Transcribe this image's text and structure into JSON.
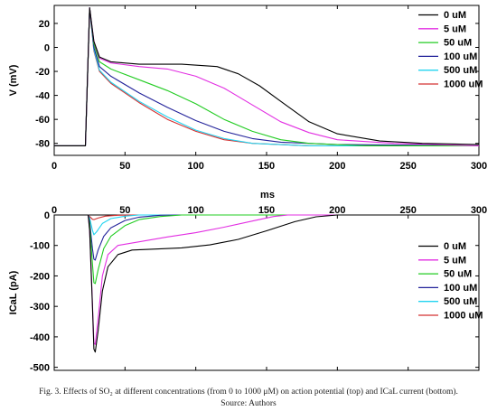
{
  "caption": {
    "line": "Fig. 3. Effects of SO₂ at different concentrations (from 0 to 1000 μM) on action potential (top) and ICaL current (bottom).",
    "source": "Source: Authors"
  },
  "shared_xlabel": "ms",
  "series_colors": [
    "#000000",
    "#e22ee2",
    "#22cc22",
    "#22229a",
    "#22d4f0",
    "#d43030"
  ],
  "chart_data": [
    {
      "type": "line",
      "title": "",
      "xlabel": "",
      "ylabel": "V (mV)",
      "xlim": [
        0,
        300
      ],
      "ylim": [
        -90,
        35
      ],
      "xticks": [
        0,
        50,
        100,
        150,
        200,
        250,
        300
      ],
      "yticks": [
        20,
        0,
        -20,
        -40,
        -60,
        -80
      ],
      "legend": {
        "position": "top-right",
        "entries": [
          "0 uM",
          "5 uM",
          "50 uM",
          "100 uM",
          "500 uM",
          "1000 uM"
        ]
      },
      "series": [
        {
          "name": "0 uM",
          "points": [
            [
              0,
              -82
            ],
            [
              22,
              -82
            ],
            [
              25,
              33
            ],
            [
              28,
              5
            ],
            [
              32,
              -8
            ],
            [
              40,
              -12
            ],
            [
              60,
              -14
            ],
            [
              90,
              -14
            ],
            [
              115,
              -16
            ],
            [
              130,
              -22
            ],
            [
              145,
              -32
            ],
            [
              160,
              -45
            ],
            [
              180,
              -62
            ],
            [
              200,
              -72
            ],
            [
              230,
              -78
            ],
            [
              260,
              -80
            ],
            [
              300,
              -81
            ]
          ]
        },
        {
          "name": "5 uM",
          "points": [
            [
              0,
              -82
            ],
            [
              22,
              -82
            ],
            [
              25,
              33
            ],
            [
              28,
              5
            ],
            [
              32,
              -9
            ],
            [
              40,
              -13
            ],
            [
              60,
              -16
            ],
            [
              80,
              -18
            ],
            [
              100,
              -24
            ],
            [
              120,
              -34
            ],
            [
              140,
              -48
            ],
            [
              160,
              -62
            ],
            [
              180,
              -71
            ],
            [
              200,
              -77
            ],
            [
              240,
              -80
            ],
            [
              300,
              -82
            ]
          ]
        },
        {
          "name": "50 uM",
          "points": [
            [
              0,
              -82
            ],
            [
              22,
              -82
            ],
            [
              25,
              33
            ],
            [
              28,
              3
            ],
            [
              32,
              -12
            ],
            [
              40,
              -18
            ],
            [
              60,
              -27
            ],
            [
              80,
              -36
            ],
            [
              100,
              -47
            ],
            [
              120,
              -60
            ],
            [
              140,
              -70
            ],
            [
              160,
              -77
            ],
            [
              180,
              -80
            ],
            [
              220,
              -82
            ],
            [
              300,
              -82
            ]
          ]
        },
        {
          "name": "100 uM",
          "points": [
            [
              0,
              -82
            ],
            [
              22,
              -82
            ],
            [
              25,
              33
            ],
            [
              28,
              0
            ],
            [
              32,
              -16
            ],
            [
              40,
              -24
            ],
            [
              60,
              -38
            ],
            [
              80,
              -50
            ],
            [
              100,
              -61
            ],
            [
              120,
              -70
            ],
            [
              140,
              -76
            ],
            [
              160,
              -79
            ],
            [
              200,
              -81
            ],
            [
              300,
              -82
            ]
          ]
        },
        {
          "name": "500 uM",
          "points": [
            [
              0,
              -82
            ],
            [
              22,
              -82
            ],
            [
              25,
              33
            ],
            [
              28,
              -2
            ],
            [
              32,
              -19
            ],
            [
              40,
              -29
            ],
            [
              60,
              -45
            ],
            [
              80,
              -58
            ],
            [
              100,
              -69
            ],
            [
              120,
              -76
            ],
            [
              140,
              -80
            ],
            [
              180,
              -82
            ],
            [
              300,
              -82
            ]
          ]
        },
        {
          "name": "1000 uM",
          "points": [
            [
              0,
              -82
            ],
            [
              22,
              -82
            ],
            [
              25,
              33
            ],
            [
              28,
              -3
            ],
            [
              32,
              -20
            ],
            [
              40,
              -30
            ],
            [
              60,
              -46
            ],
            [
              80,
              -60
            ],
            [
              100,
              -70
            ],
            [
              120,
              -77
            ],
            [
              140,
              -80
            ],
            [
              180,
              -82
            ],
            [
              300,
              -82
            ]
          ]
        }
      ]
    },
    {
      "type": "line",
      "title": "",
      "xlabel": "",
      "ylabel": "ICaL (pA)",
      "xlim": [
        0,
        300
      ],
      "ylim": [
        -510,
        0
      ],
      "xticks": [
        0,
        50,
        100,
        150,
        200,
        250,
        300
      ],
      "yticks": [
        0,
        -100,
        -200,
        -300,
        -400,
        -500
      ],
      "legend": {
        "position": "bottom-right",
        "entries": [
          "0 uM",
          "5 uM",
          "50 uM",
          "100 uM",
          "500 uM",
          "1000 uM"
        ]
      },
      "series": [
        {
          "name": "0 uM",
          "points": [
            [
              0,
              0
            ],
            [
              24,
              0
            ],
            [
              25,
              -50
            ],
            [
              27,
              -300
            ],
            [
              28,
              -440
            ],
            [
              29,
              -450
            ],
            [
              31,
              -380
            ],
            [
              34,
              -250
            ],
            [
              38,
              -170
            ],
            [
              45,
              -130
            ],
            [
              55,
              -115
            ],
            [
              70,
              -112
            ],
            [
              90,
              -108
            ],
            [
              110,
              -98
            ],
            [
              130,
              -80
            ],
            [
              150,
              -52
            ],
            [
              170,
              -22
            ],
            [
              185,
              -6
            ],
            [
              200,
              0
            ],
            [
              300,
              0
            ]
          ]
        },
        {
          "name": "5 uM",
          "points": [
            [
              0,
              0
            ],
            [
              24,
              0
            ],
            [
              25,
              -50
            ],
            [
              27,
              -290
            ],
            [
              28,
              -420
            ],
            [
              29,
              -425
            ],
            [
              31,
              -340
            ],
            [
              34,
              -200
            ],
            [
              38,
              -130
            ],
            [
              45,
              -100
            ],
            [
              60,
              -88
            ],
            [
              80,
              -72
            ],
            [
              100,
              -58
            ],
            [
              120,
              -40
            ],
            [
              140,
              -20
            ],
            [
              155,
              -5
            ],
            [
              165,
              0
            ],
            [
              300,
              0
            ]
          ]
        },
        {
          "name": "50 uM",
          "points": [
            [
              0,
              0
            ],
            [
              24,
              0
            ],
            [
              25,
              -30
            ],
            [
              27,
              -160
            ],
            [
              28,
              -222
            ],
            [
              29,
              -225
            ],
            [
              31,
              -180
            ],
            [
              35,
              -110
            ],
            [
              40,
              -70
            ],
            [
              50,
              -35
            ],
            [
              60,
              -15
            ],
            [
              75,
              -5
            ],
            [
              90,
              0
            ],
            [
              300,
              0
            ]
          ]
        },
        {
          "name": "100 uM",
          "points": [
            [
              0,
              0
            ],
            [
              24,
              0
            ],
            [
              25,
              -20
            ],
            [
              27,
              -110
            ],
            [
              28,
              -145
            ],
            [
              29,
              -148
            ],
            [
              31,
              -115
            ],
            [
              35,
              -70
            ],
            [
              40,
              -42
            ],
            [
              50,
              -18
            ],
            [
              60,
              -7
            ],
            [
              75,
              -1
            ],
            [
              90,
              0
            ],
            [
              300,
              0
            ]
          ]
        },
        {
          "name": "500 uM",
          "points": [
            [
              0,
              0
            ],
            [
              24,
              0
            ],
            [
              25,
              -10
            ],
            [
              27,
              -50
            ],
            [
              28,
              -65
            ],
            [
              30,
              -55
            ],
            [
              34,
              -28
            ],
            [
              40,
              -12
            ],
            [
              50,
              -4
            ],
            [
              60,
              0
            ],
            [
              300,
              0
            ]
          ]
        },
        {
          "name": "1000 uM",
          "points": [
            [
              0,
              0
            ],
            [
              24,
              0
            ],
            [
              25,
              -5
            ],
            [
              27,
              -14
            ],
            [
              28,
              -15
            ],
            [
              31,
              -10
            ],
            [
              36,
              -4
            ],
            [
              45,
              -1
            ],
            [
              55,
              0
            ],
            [
              300,
              0
            ]
          ]
        }
      ]
    }
  ]
}
